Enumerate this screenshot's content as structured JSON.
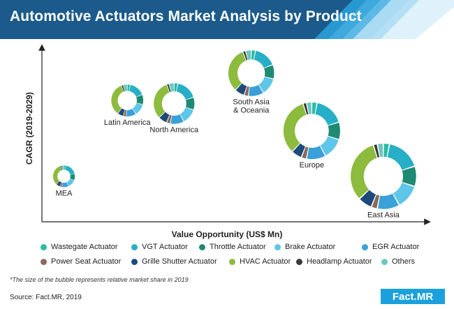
{
  "header": {
    "title": "Automotive Actuators Market Analysis by Product"
  },
  "colors": {
    "banner_dark": "#1b5a8a",
    "banner_light": "#2a9fd8",
    "axis": "#222222",
    "segments": [
      "#2bbba0",
      "#27afc7",
      "#1f8a73",
      "#5ec6e8",
      "#3aa0d8",
      "#8a6a5a",
      "#1e4a7a",
      "#8dbb3e",
      "#3a3a3a",
      "#6ec6c0"
    ]
  },
  "chart_data": {
    "type": "bubble-donut",
    "xlabel": "Value Opportunity (US$ Mn)",
    "ylabel": "CAGR (2019-2029)",
    "series_names": [
      "Wastegate Actuator",
      "VGT Actuator",
      "Throttle Actuator",
      "Brake Actuator",
      "EGR Actuator",
      "Power Seat Actuator",
      "Grille Shutter Actuator",
      "HVAC Actuator",
      "Headlamp Actuator",
      "Others"
    ],
    "bubbles": [
      {
        "label": "MEA",
        "x": 0.08,
        "y": 0.3,
        "size": 0.3,
        "shares": [
          3,
          18,
          10,
          12,
          10,
          3,
          6,
          32,
          2,
          4
        ]
      },
      {
        "label": "Latin America",
        "x": 0.31,
        "y": 0.8,
        "size": 0.44,
        "shares": [
          3,
          16,
          10,
          12,
          10,
          3,
          6,
          34,
          2,
          4
        ]
      },
      {
        "label": "North America",
        "x": 0.48,
        "y": 0.78,
        "size": 0.56,
        "shares": [
          3,
          17,
          10,
          12,
          11,
          3,
          7,
          31,
          2,
          4
        ]
      },
      {
        "label": "South Asia\n& Oceania",
        "x": 0.76,
        "y": 0.98,
        "size": 0.63,
        "shares": [
          3,
          16,
          10,
          12,
          11,
          3,
          7,
          32,
          2,
          4
        ]
      },
      {
        "label": "Europe",
        "x": 0.98,
        "y": 0.6,
        "size": 0.78,
        "shares": [
          3,
          17,
          10,
          12,
          11,
          3,
          6,
          33,
          2,
          3
        ]
      },
      {
        "label": "East Asia",
        "x": 1.24,
        "y": 0.3,
        "size": 0.9,
        "shares": [
          3,
          17,
          10,
          12,
          11,
          3,
          7,
          32,
          2,
          3
        ]
      }
    ]
  },
  "footer": {
    "note": "*The size of the bubble represents relative market share in 2019",
    "source": "Source: Fact.MR, 2019",
    "logo": "Fact.MR"
  }
}
